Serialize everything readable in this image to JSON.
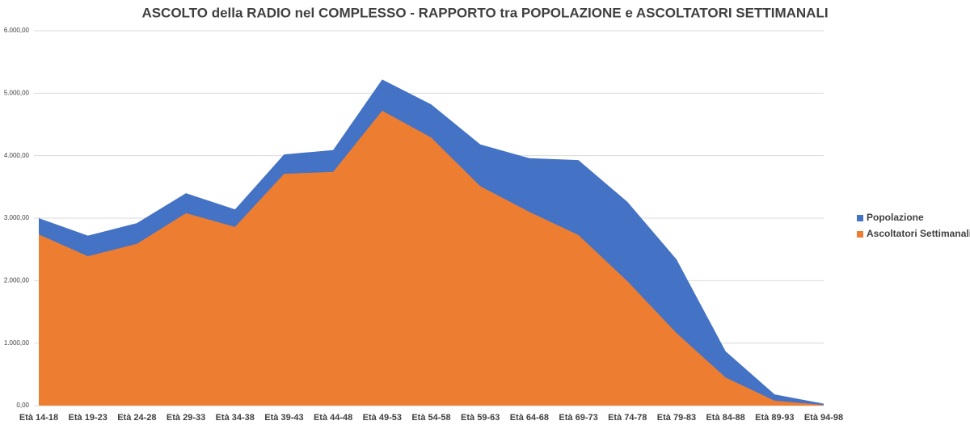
{
  "chart_data": {
    "type": "area",
    "title": "ASCOLTO della RADIO nel COMPLESSO - RAPPORTO tra POPOLAZIONE e ASCOLTATORI SETTIMANALI",
    "categories": [
      "Età 14-18",
      "Età 19-23",
      "Età 24-28",
      "Età 29-33",
      "Età 34-38",
      "Età 39-43",
      "Età 44-48",
      "Età 49-53",
      "Età 54-58",
      "Età 59-63",
      "Età 64-68",
      "Età 69-73",
      "Età 74-78",
      "Età 79-83",
      "Età 84-88",
      "Età 89-93",
      "Età 94-98"
    ],
    "series": [
      {
        "name": "Popolazione",
        "color": "#4472c4",
        "values": [
          3000,
          2720,
          2920,
          3400,
          3140,
          4020,
          4090,
          5220,
          4820,
          4180,
          3960,
          3930,
          3260,
          2340,
          870,
          180,
          30
        ]
      },
      {
        "name": "Ascoltatori Settimanali",
        "color": "#ed7d31",
        "values": [
          2740,
          2390,
          2590,
          3080,
          2860,
          3710,
          3740,
          4720,
          4290,
          3510,
          3100,
          2730,
          1990,
          1160,
          450,
          80,
          10
        ]
      }
    ],
    "ylim": [
      0,
      6000
    ],
    "yticks": [
      {
        "value": 0,
        "label": "0,00"
      },
      {
        "value": 1000,
        "label": "1.000,00"
      },
      {
        "value": 2000,
        "label": "2.000,00"
      },
      {
        "value": 3000,
        "label": "3.000,00"
      },
      {
        "value": 4000,
        "label": "4.000,00"
      },
      {
        "value": 5000,
        "label": "5.000,00"
      },
      {
        "value": 6000,
        "label": "6.000,00"
      }
    ],
    "grid": true,
    "legend": "right"
  }
}
